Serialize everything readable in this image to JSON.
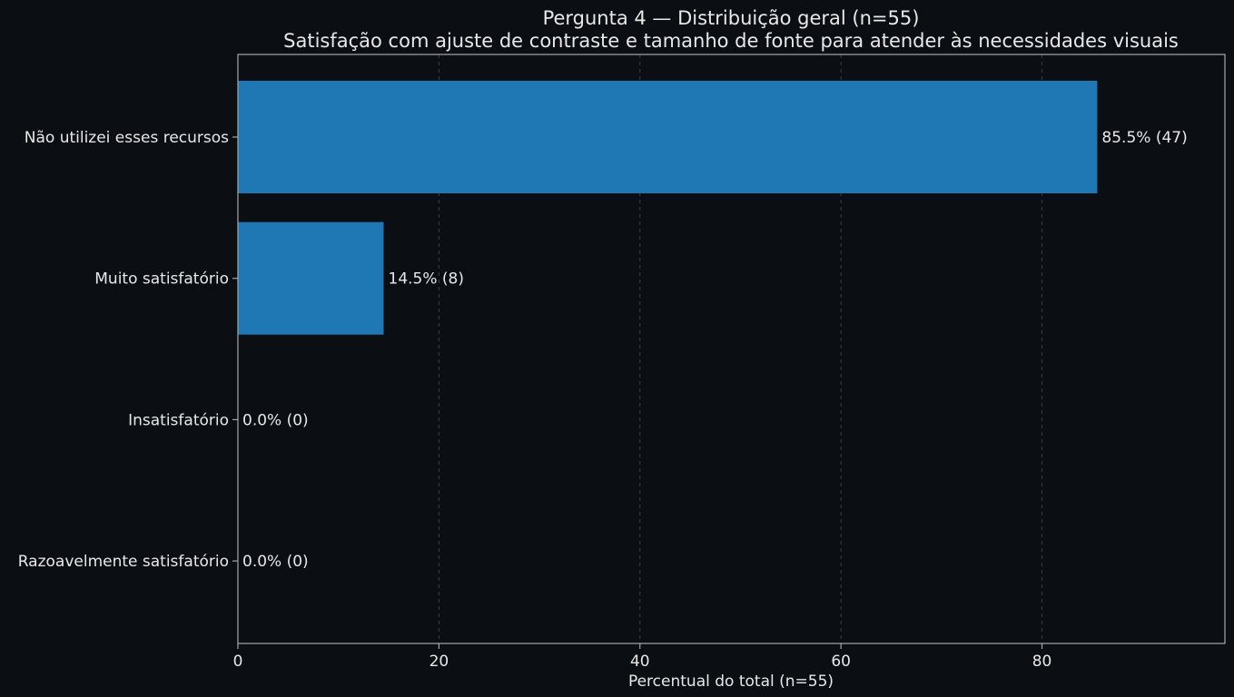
{
  "colors": {
    "background": "#0b0e13",
    "bar": "#1f77b4",
    "axis": "#a8a8a8",
    "grid": "#3a3f47",
    "text": "#e8e8e8"
  },
  "chart_data": {
    "type": "bar",
    "orientation": "horizontal",
    "title": "Pergunta 4 — Distribuição geral (n=55)",
    "subtitle": "Satisfação com ajuste de contraste e tamanho de fonte para atender às necessidades visuais",
    "xlabel": "Percentual do total (n=55)",
    "ylabel": "",
    "xlim": [
      0,
      98.2
    ],
    "xticks": [
      0,
      20,
      40,
      60,
      80
    ],
    "grid": "x-dashed",
    "categories": [
      "Não utilizei esses recursos",
      "Muito satisfatório",
      "Insatisfatório",
      "Razoavelmente satisfatório"
    ],
    "values": [
      85.5,
      14.5,
      0.0,
      0.0
    ],
    "counts": [
      47,
      8,
      0,
      0
    ],
    "data_labels": [
      "85.5% (47)",
      "14.5% (8)",
      "0.0% (0)",
      "0.0% (0)"
    ]
  }
}
